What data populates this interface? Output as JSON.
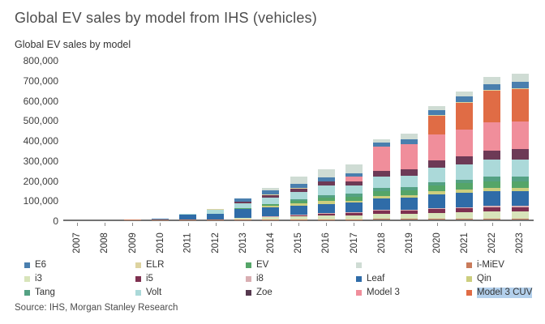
{
  "title": "Global EV sales by model from IHS (vehicles)",
  "subtitle": "Global EV sales by model",
  "source": "Source: IHS, Morgan Stanley Research",
  "colors": {
    "selection_highlight": "#b3d0ec",
    "axis_line": "#737373",
    "title_text": "#4d4d4d"
  },
  "legend": {
    "columns": 5,
    "rows": 3,
    "items": [
      {
        "label": "E6",
        "color": "#4a7fae",
        "highlighted": false
      },
      {
        "label": "ELR",
        "color": "#ddd3a0",
        "highlighted": false
      },
      {
        "label": "EV",
        "color": "#55a568",
        "highlighted": false
      },
      {
        "label": "",
        "color": "#cfdcd4",
        "highlighted": false
      },
      {
        "label": "i-MiEV",
        "color": "#c97b5b",
        "highlighted": false
      },
      {
        "label": "i3",
        "color": "#d8e4ba",
        "highlighted": false
      },
      {
        "label": "i5",
        "color": "#7e3050",
        "highlighted": false
      },
      {
        "label": "i8",
        "color": "#d9aeb2",
        "highlighted": false
      },
      {
        "label": "Leaf",
        "color": "#2f6ca8",
        "highlighted": false
      },
      {
        "label": "Qin",
        "color": "#ccce7e",
        "highlighted": false
      },
      {
        "label": "Tang",
        "color": "#54a183",
        "highlighted": false
      },
      {
        "label": "Volt",
        "color": "#abd9d9",
        "highlighted": false
      },
      {
        "label": "Zoe",
        "color": "#56384e",
        "highlighted": false
      },
      {
        "label": "Model 3",
        "color": "#f08e9b",
        "highlighted": false
      },
      {
        "label": "Model 3 CUV",
        "color": "#e06c45",
        "highlighted": true
      }
    ]
  },
  "chart_data": {
    "type": "bar",
    "stacked": true,
    "title": "Global EV sales by model",
    "xlabel": "",
    "ylabel": "",
    "ylim": [
      0,
      800000
    ],
    "ytick_step": 100000,
    "ytick_labels": [
      "800,000",
      "700,000",
      "600,000",
      "500,000",
      "400,000",
      "300,000",
      "200,000",
      "100,000",
      "0"
    ],
    "grid": false,
    "legend_position": "bottom",
    "categories": [
      "2007",
      "2008",
      "2009",
      "2010",
      "2011",
      "2012",
      "2013",
      "2014",
      "2015",
      "2016",
      "2017",
      "2018",
      "2019",
      "2020",
      "2021",
      "2022",
      "2023"
    ],
    "series": [
      {
        "name": "i-MiEV",
        "color": "#c97b5b",
        "values": [
          0,
          0,
          1000,
          1000,
          1000,
          1000,
          2000,
          2000,
          2000,
          2000,
          2000,
          3000,
          3000,
          4000,
          5000,
          6000,
          6000
        ]
      },
      {
        "name": "i3",
        "color": "#d8e4ba",
        "values": [
          0,
          0,
          0,
          0,
          0,
          0,
          5000,
          12000,
          15000,
          20000,
          20000,
          25000,
          25000,
          30000,
          32000,
          35000,
          35000
        ]
      },
      {
        "name": "i5",
        "color": "#7e3050",
        "values": [
          0,
          0,
          0,
          0,
          0,
          0,
          0,
          0,
          5000,
          8000,
          10000,
          15000,
          15000,
          18000,
          20000,
          22000,
          22000
        ]
      },
      {
        "name": "i8",
        "color": "#d9aeb2",
        "values": [
          0,
          0,
          0,
          0,
          0,
          0,
          0,
          2000,
          3000,
          4000,
          4000,
          5000,
          5000,
          6000,
          6000,
          6000,
          6000
        ]
      },
      {
        "name": "Leaf",
        "color": "#2f6ca8",
        "values": [
          0,
          0,
          1000,
          3000,
          22000,
          27000,
          45000,
          45000,
          43000,
          45000,
          48000,
          60000,
          62000,
          70000,
          72000,
          75000,
          75000
        ]
      },
      {
        "name": "Qin",
        "color": "#ccce7e",
        "values": [
          0,
          0,
          0,
          0,
          0,
          0,
          2000,
          8000,
          12000,
          14000,
          12000,
          12000,
          12000,
          14000,
          15000,
          16000,
          16000
        ]
      },
      {
        "name": "EV",
        "color": "#55a568",
        "values": [
          0,
          0,
          0,
          0,
          0,
          0,
          3000,
          8000,
          15000,
          18000,
          20000,
          25000,
          26000,
          30000,
          32000,
          34000,
          34000
        ]
      },
      {
        "name": "Tang",
        "color": "#54a183",
        "values": [
          0,
          0,
          0,
          0,
          0,
          0,
          0,
          0,
          8000,
          12000,
          14000,
          16000,
          16000,
          18000,
          20000,
          22000,
          22000
        ]
      },
      {
        "name": "Volt",
        "color": "#abd9d9",
        "values": [
          0,
          0,
          0,
          1000,
          5000,
          20000,
          23000,
          35000,
          38000,
          50000,
          42000,
          55000,
          58000,
          70000,
          75000,
          85000,
          88000
        ]
      },
      {
        "name": "Zoe",
        "color": "#6d3a56",
        "values": [
          0,
          0,
          0,
          0,
          1000,
          3000,
          8000,
          12000,
          15000,
          18000,
          20000,
          30000,
          32000,
          38000,
          42000,
          48000,
          50000
        ]
      },
      {
        "name": "Model 3",
        "color": "#f08e9b",
        "values": [
          0,
          0,
          0,
          0,
          0,
          0,
          0,
          0,
          0,
          0,
          25000,
          120000,
          125000,
          130000,
          135000,
          140000,
          140000
        ]
      },
      {
        "name": "Model 3 CUV",
        "color": "#e06c45",
        "values": [
          0,
          0,
          0,
          0,
          0,
          0,
          0,
          0,
          0,
          0,
          0,
          0,
          0,
          95000,
          135000,
          160000,
          165000
        ]
      },
      {
        "name": "ELR",
        "color": "#ddd3a0",
        "values": [
          0,
          0,
          0,
          0,
          0,
          1000,
          2000,
          2000,
          2000,
          1000,
          1000,
          2000,
          2000,
          3000,
          3000,
          4000,
          4000
        ]
      },
      {
        "name": "E6",
        "color": "#4a7fae",
        "values": [
          0,
          0,
          0,
          0,
          1000,
          3000,
          15000,
          20000,
          20000,
          20000,
          15000,
          20000,
          25000,
          25000,
          28000,
          30000,
          30000
        ]
      },
      {
        "name": "",
        "color": "#cfdcd4",
        "values": [
          0,
          0,
          0,
          0,
          0,
          0,
          0,
          14000,
          37000,
          43000,
          47000,
          17000,
          29000,
          19000,
          25000,
          37000,
          42000
        ]
      }
    ]
  }
}
